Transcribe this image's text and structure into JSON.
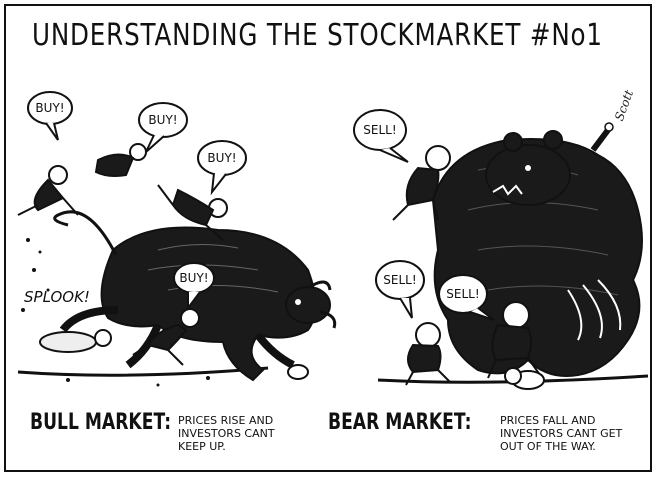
{
  "title": "UNDERSTANDING THE STOCKMARKET #No1",
  "signature": "Scott",
  "bull_panel": {
    "bubbles": [
      "BUY!",
      "BUY!",
      "BUY!",
      "BUY!"
    ],
    "sound_effect": "SPLOOK!",
    "heading": "BULL MARKET:",
    "description": "PRICES RISE AND\nINVESTORS CANT\nKEEP UP."
  },
  "bear_panel": {
    "bubbles": [
      "SELL!",
      "SELL!",
      "SELL!"
    ],
    "heading": "BEAR MARKET:",
    "description": "PRICES FALL AND\nINVESTORS CANT GET\nOUT OF THE WAY."
  }
}
